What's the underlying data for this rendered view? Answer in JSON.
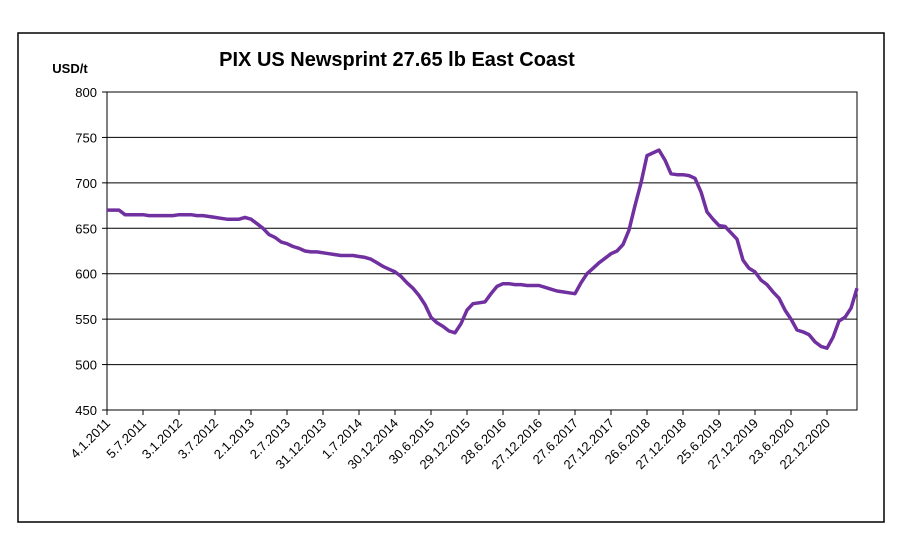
{
  "chart_data": {
    "type": "line",
    "title": "PIX US Newsprint 27.65 lb East Coast",
    "y_label": "USD/t",
    "categories": [
      "4.1.2011",
      null,
      null,
      null,
      null,
      null,
      "5.7.2011",
      null,
      null,
      null,
      null,
      null,
      "3.1.2012",
      null,
      null,
      null,
      null,
      null,
      "3.7.2012",
      null,
      null,
      null,
      null,
      null,
      "2.1.2013",
      null,
      null,
      null,
      null,
      null,
      "2.7.2013",
      null,
      null,
      null,
      null,
      null,
      "31.12.2013",
      null,
      null,
      null,
      null,
      null,
      "1.7.2014",
      null,
      null,
      null,
      null,
      null,
      "30.12.2014",
      null,
      null,
      null,
      null,
      null,
      "30.6.2015",
      null,
      null,
      null,
      null,
      null,
      "29.12.2015",
      null,
      null,
      null,
      null,
      null,
      "28.6.2016",
      null,
      null,
      null,
      null,
      null,
      "27.12.2016",
      null,
      null,
      null,
      null,
      null,
      "27.6.2017",
      null,
      null,
      null,
      null,
      null,
      "27.12.2017",
      null,
      null,
      null,
      null,
      null,
      "26.6.2018",
      null,
      null,
      null,
      null,
      null,
      "27.12.2018",
      null,
      null,
      null,
      null,
      null,
      "25.6.2019",
      null,
      null,
      null,
      null,
      null,
      "27.12.2019",
      null,
      null,
      null,
      null,
      null,
      "23.6.2020",
      null,
      null,
      null,
      null,
      null,
      "22.12.2020",
      null,
      null,
      null,
      null,
      null
    ],
    "series": [
      {
        "color": "#7030a0",
        "values": [
          670,
          670,
          670,
          665,
          665,
          665,
          665,
          664,
          664,
          664,
          664,
          664,
          665,
          665,
          665,
          664,
          664,
          663,
          662,
          661,
          660,
          660,
          660,
          662,
          660,
          655,
          650,
          643,
          640,
          635,
          633,
          630,
          628,
          625,
          624,
          624,
          623,
          622,
          621,
          620,
          620,
          620,
          619,
          618,
          616,
          612,
          608,
          605,
          602,
          597,
          590,
          584,
          576,
          566,
          552,
          546,
          542,
          537,
          535,
          545,
          560,
          567,
          568,
          569,
          578,
          586,
          589,
          589,
          588,
          588,
          587,
          587,
          587,
          585,
          583,
          581,
          580,
          579,
          578,
          590,
          600,
          606,
          612,
          617,
          622,
          625,
          632,
          648,
          675,
          700,
          730,
          733,
          736,
          725,
          710,
          709,
          709,
          708,
          705,
          690,
          668,
          660,
          653,
          652,
          645,
          638,
          615,
          606,
          602,
          593,
          588,
          580,
          573,
          560,
          550,
          538,
          536,
          533,
          525,
          520,
          518,
          530,
          548,
          552,
          562,
          584
        ]
      }
    ],
    "ylim": [
      450,
      800
    ],
    "yticks": [
      450,
      500,
      550,
      600,
      650,
      700,
      750,
      800
    ],
    "grid": true
  }
}
